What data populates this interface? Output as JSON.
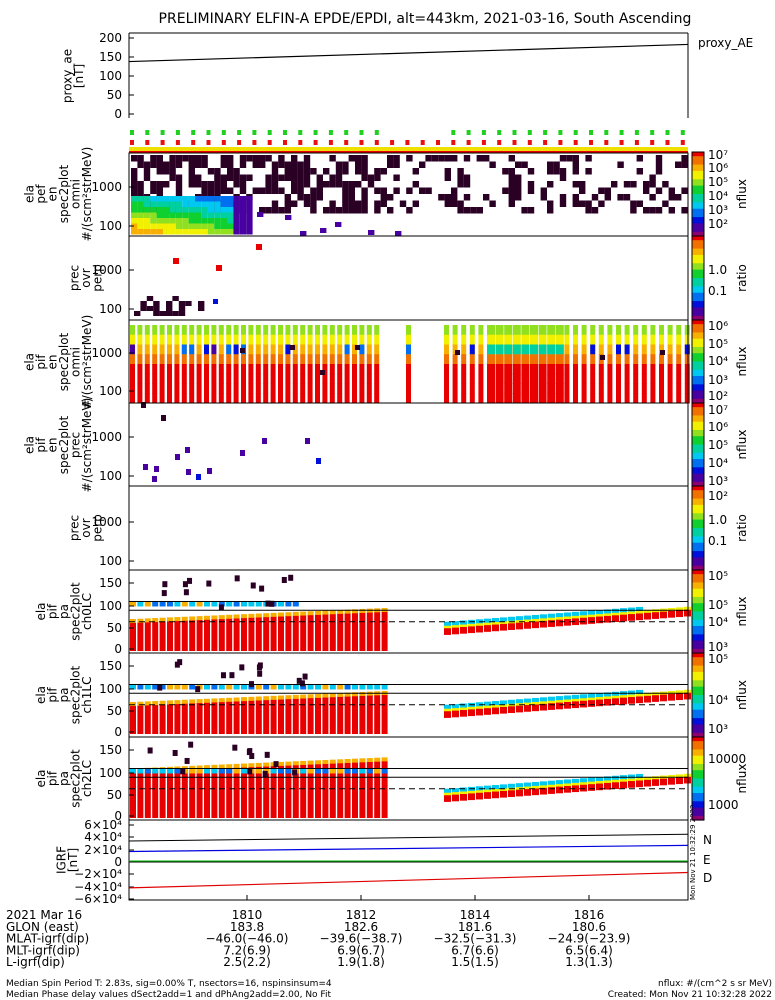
{
  "title": "PRELIMINARY ELFIN-A EPDE/EPDI, alt=443km, 2021-03-16, South Ascending",
  "side_label": "Mon Nov 21 10:32:29 2022",
  "colors": {
    "spectral": [
      "#8c0070",
      "#4800a0",
      "#0010d8",
      "#0070f0",
      "#00c8f0",
      "#00d0a0",
      "#10d030",
      "#90e020",
      "#f0f000",
      "#f8b000",
      "#f07000",
      "#e80000"
    ],
    "dark": "#2a0024",
    "trace": "#000000",
    "ind_green": "#20d020",
    "ind_red": "#e81010",
    "bar_yellow": "#f0e000",
    "bar_red": "#e80000",
    "igrf_n": "#0000e0",
    "igrf_e": "#00b000",
    "igrf_d": "#e00000"
  },
  "chart_data": [
    {
      "id": "proxy_ae",
      "type": "line",
      "ylabel": [
        "proxy_ae",
        "[nT]"
      ],
      "legend": "proxy_AE",
      "yticks": [
        "200",
        "150",
        "100",
        "50",
        "0"
      ],
      "x": [
        "18:07:40",
        "18:18:00"
      ],
      "y": [
        138,
        183
      ],
      "ylim": [
        0,
        200
      ]
    },
    {
      "id": "epde_omni",
      "type": "heatmap",
      "ylabel": [
        "ela",
        "pef",
        "en",
        "spec2plot",
        "omni",
        "#/(scm²strMeV)"
      ],
      "yticks": [
        "1000",
        "100"
      ],
      "colorbar": {
        "label": "nflux",
        "ticks": [
          "10⁷",
          "10⁶",
          "10⁵",
          "10⁴",
          "10³",
          "10²"
        ]
      }
    },
    {
      "id": "epde_ratio",
      "type": "heatmap",
      "ylabel": [
        "prec",
        "ovr",
        "perp"
      ],
      "yticks": [
        "1000",
        "100"
      ],
      "colorbar": {
        "label": "ratio",
        "ticks": [
          "1.0",
          "0.1"
        ]
      }
    },
    {
      "id": "epdi_omni",
      "type": "heatmap",
      "ylabel": [
        "ela",
        "pif",
        "en",
        "spec2plot",
        "omni",
        "#/(scm²strMeV)"
      ],
      "yticks": [
        "1000",
        "100"
      ],
      "colorbar": {
        "label": "nflux",
        "ticks": [
          "10⁶",
          "10⁵",
          "10⁴",
          "10³",
          "10²"
        ]
      }
    },
    {
      "id": "epdi_prec",
      "type": "heatmap",
      "ylabel": [
        "ela",
        "pif",
        "en",
        "spec2plot",
        "prec",
        "#/(scm²strMeV)"
      ],
      "yticks": [
        "1000",
        "100"
      ],
      "colorbar": {
        "label": "nflux",
        "ticks": [
          "10⁷",
          "10⁶",
          "10⁵",
          "10⁴",
          "10³",
          "10²"
        ]
      }
    },
    {
      "id": "epdi_ratio",
      "type": "heatmap",
      "ylabel": [
        "prec",
        "ovr",
        "perp"
      ],
      "yticks": [
        "1000",
        "100"
      ],
      "colorbar": {
        "label": "ratio",
        "ticks": [
          "1.0",
          "0.1"
        ]
      }
    },
    {
      "id": "pa_ch0",
      "type": "heatmap",
      "ylabel": [
        "ela",
        "pif",
        "pa",
        "spec2plot",
        "ch0LC"
      ],
      "yticks": [
        "150",
        "100",
        "50",
        "0"
      ],
      "colorbar": {
        "label": "nflux",
        "ticks": [
          "10⁵",
          "10⁵",
          "10⁴",
          "10³"
        ]
      }
    },
    {
      "id": "pa_ch1",
      "type": "heatmap",
      "ylabel": [
        "ela",
        "pif",
        "pa",
        "spec2plot",
        "ch1LC"
      ],
      "yticks": [
        "150",
        "100",
        "50",
        "0"
      ],
      "colorbar": {
        "label": "nflux",
        "ticks": [
          "10⁵",
          "10⁴",
          "10³"
        ]
      }
    },
    {
      "id": "pa_ch2",
      "type": "heatmap",
      "ylabel": [
        "ela",
        "pif",
        "pa",
        "spec2plot",
        "ch2LC"
      ],
      "yticks": [
        "150",
        "100",
        "50",
        "0"
      ],
      "colorbar": {
        "label": "nflux",
        "ticks": [
          "10000",
          "1000"
        ]
      }
    },
    {
      "id": "igrf",
      "type": "line",
      "ylabel": [
        "IGRF",
        "[nT]"
      ],
      "yticks": [
        "6×10⁴",
        "4×10⁴",
        "2×10⁴",
        "0",
        "−2×10⁴",
        "−4×10⁴",
        "−6×10⁴"
      ],
      "ylim": [
        -60000,
        60000
      ],
      "legend": [
        "N",
        "E",
        "D"
      ],
      "series": [
        {
          "name": "N",
          "x": [
            "18:07:40",
            "18:18:00"
          ],
          "y": [
            17000,
            27000
          ]
        },
        {
          "name": "E",
          "x": [
            "18:07:40",
            "18:18:00"
          ],
          "y": [
            1500,
            1500
          ]
        },
        {
          "name": "D",
          "x": [
            "18:07:40",
            "18:18:00"
          ],
          "y": [
            -42000,
            -17000
          ]
        }
      ]
    }
  ],
  "footer": {
    "rows": [
      [
        "2021 Mar 16",
        "1810",
        "1812",
        "1814",
        "1816"
      ],
      [
        "GLON (east)",
        "183.8",
        "182.6",
        "181.6",
        "180.6"
      ],
      [
        "MLAT-igrf(dip)",
        "−46.0(−46.0)",
        "−39.6(−38.7)",
        "−32.5(−31.3)",
        "−24.9(−23.9)"
      ],
      [
        "MLT-igrf(dip)",
        "7.2(6.9)",
        "6.9(6.7)",
        "6.7(6.6)",
        "6.5(6.4)"
      ],
      [
        "L-igrf(dip)",
        "2.5(2.2)",
        "1.9(1.8)",
        "1.5(1.5)",
        "1.3(1.3)"
      ]
    ],
    "note1": "Median Spin Period T: 2.83s, sig=0.00% T, nsectors=16, nspinsinsum=4",
    "note2": "Median Phase delay values dSect2add=1 and dPhAng2add=2.00, No Fit",
    "units": "nflux: #/(cm^2 s sr MeV)",
    "created": "Created: Mon Nov 21 10:32:28 2022"
  }
}
